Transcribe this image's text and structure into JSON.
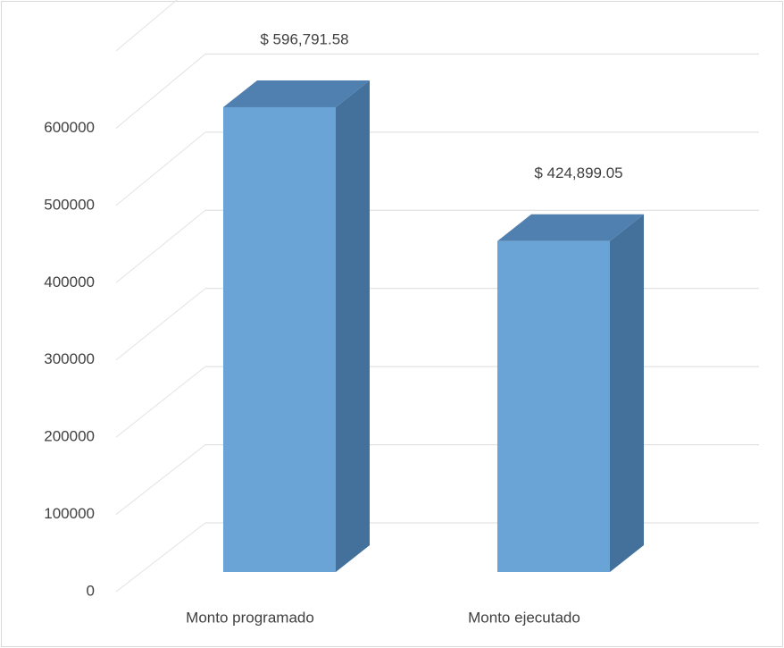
{
  "chart_data": {
    "type": "bar",
    "categories": [
      "Monto programado",
      "Monto ejecutado"
    ],
    "values": [
      596791.58,
      424899.05
    ],
    "value_labels": [
      "$ 596,791.58",
      "$ 424,899.05"
    ],
    "color": "#6aa3d5",
    "ylim": [
      0,
      700000
    ],
    "yticks": [
      0,
      100000,
      200000,
      300000,
      400000,
      500000,
      600000
    ],
    "grid": true
  }
}
